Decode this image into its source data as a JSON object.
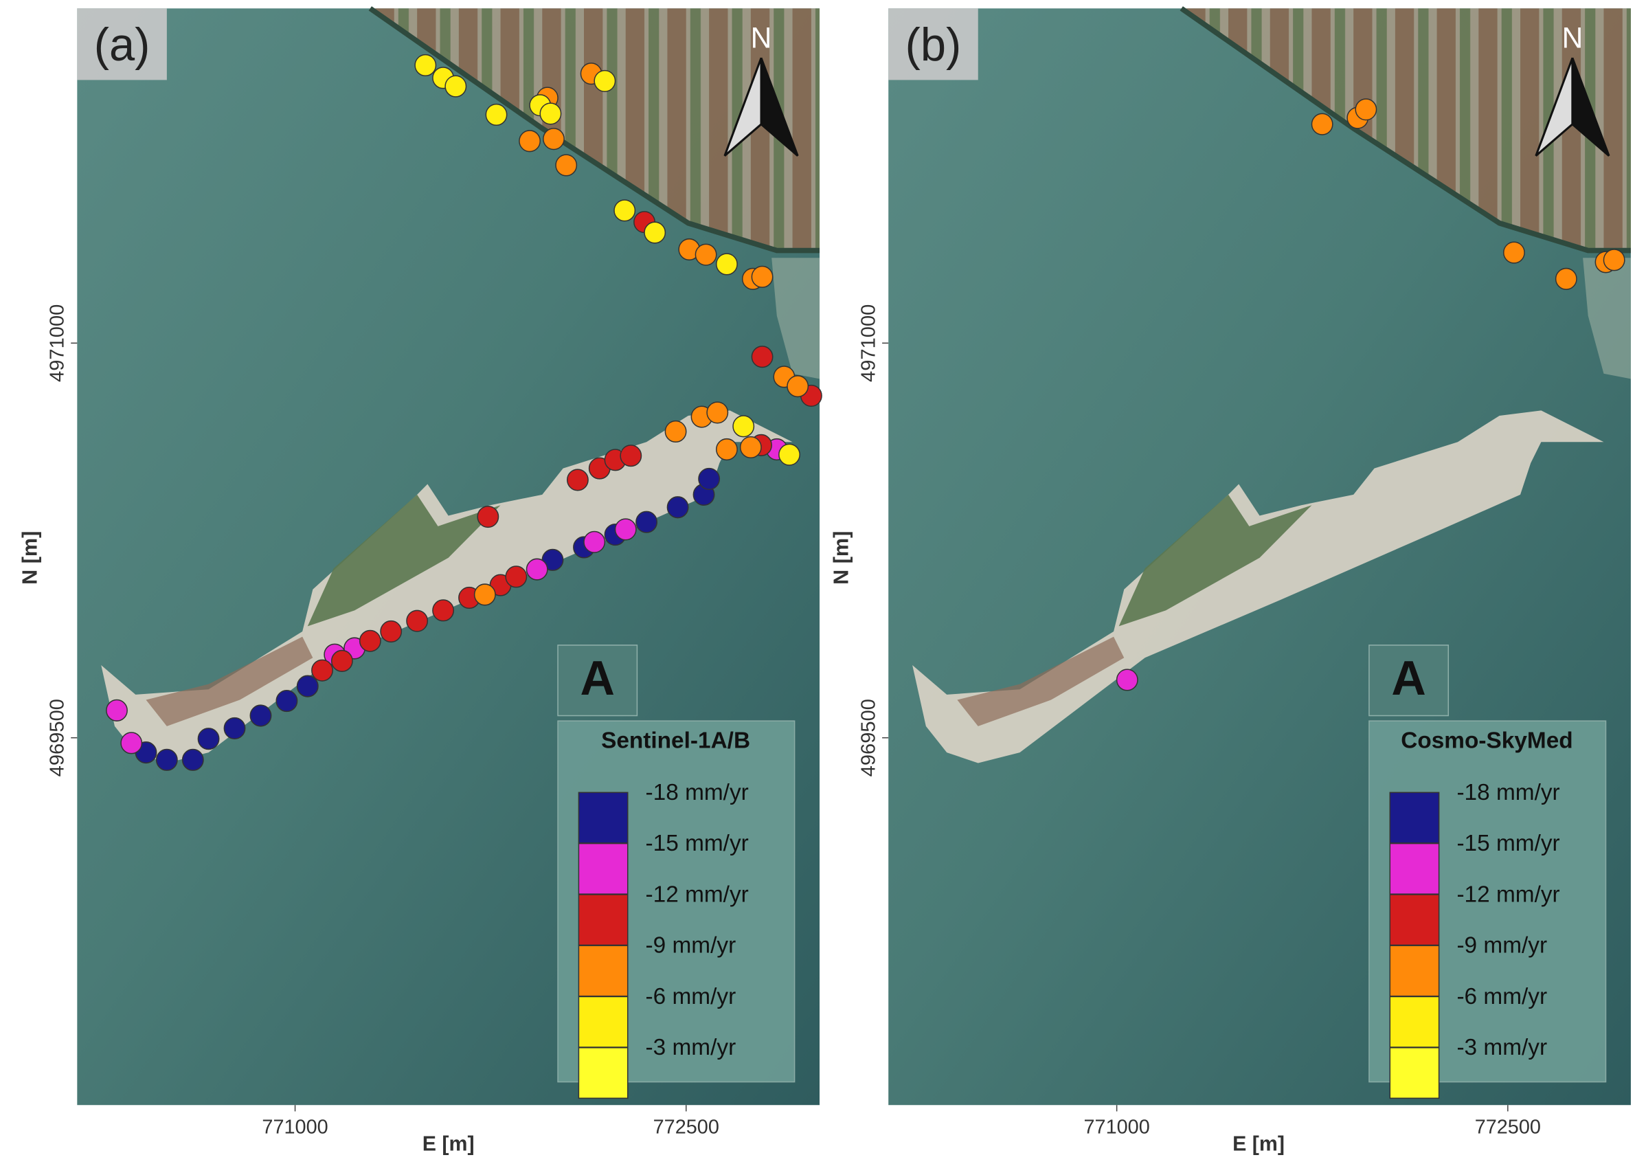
{
  "chart_data": [
    {
      "type": "scatter",
      "panel_label": "(a)",
      "north_label": "N",
      "badge": "A",
      "legend_title": "Sentinel-1A/B",
      "x_label": "E [m]",
      "y_label": "N [m]",
      "xlim": [
        770164,
        773012
      ],
      "ylim": [
        4968104,
        4972272
      ],
      "xticks": [
        771000,
        772500
      ],
      "yticks": [
        4969500,
        4971000
      ],
      "series": [
        {
          "name": "-18 mm/yr",
          "color": "#1a1a8c",
          "x": [
            770428,
            770508,
            770608,
            770668,
            770768,
            770868,
            770968,
            771048,
            771988,
            772108,
            772228,
            772348,
            772468,
            772568,
            772588
          ],
          "y": [
            4969444,
            4969416,
            4969416,
            4969496,
            4969536,
            4969584,
            4969640,
            4969696,
            4970176,
            4970224,
            4970272,
            4970320,
            4970376,
            4970424,
            4970484
          ]
        },
        {
          "name": "-15 mm/yr",
          "color": "#e62ad4",
          "x": [
            770316,
            770372,
            771152,
            771228,
            771928,
            772148,
            772268,
            772848
          ],
          "y": [
            4969604,
            4969480,
            4969816,
            4969840,
            4970140,
            4970244,
            4970292,
            4970596
          ]
        },
        {
          "name": "-12 mm/yr",
          "color": "#d41d1d",
          "x": [
            772340,
            772792,
            772980,
            771740,
            772084,
            772168,
            772228,
            772288,
            772788,
            771104,
            771180,
            771288,
            771368,
            771468,
            771568,
            771668,
            771788,
            771848
          ],
          "y": [
            4971460,
            4970948,
            4970800,
            4970340,
            4970480,
            4970524,
            4970556,
            4970572,
            4970612,
            4969756,
            4969792,
            4969868,
            4969904,
            4969944,
            4969984,
            4970032,
            4970080,
            4970112
          ]
        },
        {
          "name": "-9 mm/yr",
          "color": "#ff8a0a",
          "x": [
            771900,
            771992,
            772040,
            772136,
            771968,
            772512,
            772576,
            772756,
            772792,
            772876,
            772928,
            772460,
            772560,
            772620,
            772656,
            772748,
            771728
          ],
          "y": [
            4971768,
            4971776,
            4971676,
            4972024,
            4971932,
            4971356,
            4971336,
            4971244,
            4971252,
            4970872,
            4970836,
            4970664,
            4970720,
            4970736,
            4970596,
            4970604,
            4970044
          ]
        },
        {
          "name": "-6 mm/yr",
          "color": "#ffee10",
          "x": [
            771500,
            771568,
            771616,
            771772,
            771940,
            771980,
            772188,
            772264,
            772380,
            772656,
            772720,
            772896
          ],
          "y": [
            4972056,
            4972008,
            4971976,
            4971868,
            4971904,
            4971872,
            4971996,
            4971504,
            4971420,
            4971300,
            4970684,
            4970576
          ]
        },
        {
          "name": "-3 mm/yr",
          "color": "#ffff2a",
          "x": [],
          "y": []
        }
      ]
    },
    {
      "type": "scatter",
      "panel_label": "(b)",
      "north_label": "N",
      "badge": "A",
      "legend_title": "Cosmo-SkyMed",
      "x_label": "E [m]",
      "y_label": "N [m]",
      "xlim": [
        770124,
        772964
      ],
      "ylim": [
        4968104,
        4972272
      ],
      "xticks": [
        771000,
        772500
      ],
      "yticks": [
        4969500,
        4971000
      ],
      "series": [
        {
          "name": "-18 mm/yr",
          "color": "#1a1a8c",
          "x": [],
          "y": []
        },
        {
          "name": "-15 mm/yr",
          "color": "#e62ad4",
          "x": [
            771040
          ],
          "y": [
            4969720
          ]
        },
        {
          "name": "-12 mm/yr",
          "color": "#d41d1d",
          "x": [],
          "y": []
        },
        {
          "name": "-9 mm/yr",
          "color": "#ff8a0a",
          "x": [
            771788,
            771924,
            771956,
            772524,
            772724,
            772876,
            772908
          ],
          "y": [
            4971832,
            4971856,
            4971888,
            4971344,
            4971244,
            4971308,
            4971316
          ]
        },
        {
          "name": "-6 mm/yr",
          "color": "#ffee10",
          "x": [],
          "y": []
        },
        {
          "name": "-3 mm/yr",
          "color": "#ffff2a",
          "x": [],
          "y": []
        }
      ]
    }
  ]
}
